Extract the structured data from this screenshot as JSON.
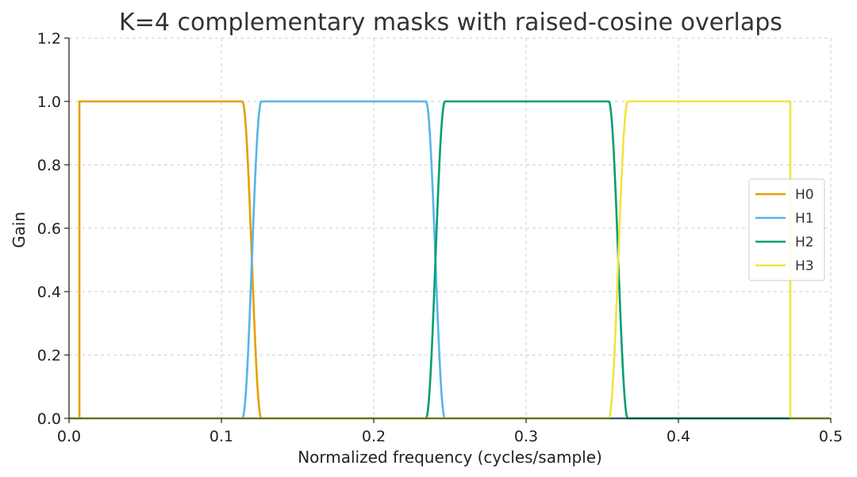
{
  "chart_data": {
    "type": "line",
    "title": "K=4 complementary masks with raised-cosine overlaps",
    "xlabel": "Normalized frequency (cycles/sample)",
    "ylabel": "Gain",
    "xlim": [
      0,
      0.5
    ],
    "ylim": [
      0,
      1.2
    ],
    "xticks": [
      0.0,
      0.1,
      0.2,
      0.3,
      0.4,
      0.5
    ],
    "xtick_labels": [
      "0.0",
      "0.1",
      "0.2",
      "0.3",
      "0.4",
      "0.5"
    ],
    "yticks": [
      0.0,
      0.2,
      0.4,
      0.6,
      0.8,
      1.0,
      1.2
    ],
    "ytick_labels": [
      "0.0",
      "0.2",
      "0.4",
      "0.6",
      "0.8",
      "1.0",
      "1.2"
    ],
    "grid": true,
    "legend_position": "center-right",
    "series": [
      {
        "name": "H0",
        "color": "#E69F00",
        "band": [
          0.0068,
          0.12
        ],
        "rise": "step",
        "fall_width": 0.0125
      },
      {
        "name": "H1",
        "color": "#56B4E9",
        "band": [
          0.12,
          0.2405
        ],
        "rise_width": 0.0125,
        "fall_width": 0.0125
      },
      {
        "name": "H2",
        "color": "#009E73",
        "band": [
          0.2405,
          0.3605
        ],
        "rise_width": 0.0125,
        "fall_width": 0.0125
      },
      {
        "name": "H3",
        "color": "#F0E442",
        "band": [
          0.3605,
          0.4734
        ],
        "rise_width": 0.0125,
        "fall": "step"
      }
    ]
  }
}
